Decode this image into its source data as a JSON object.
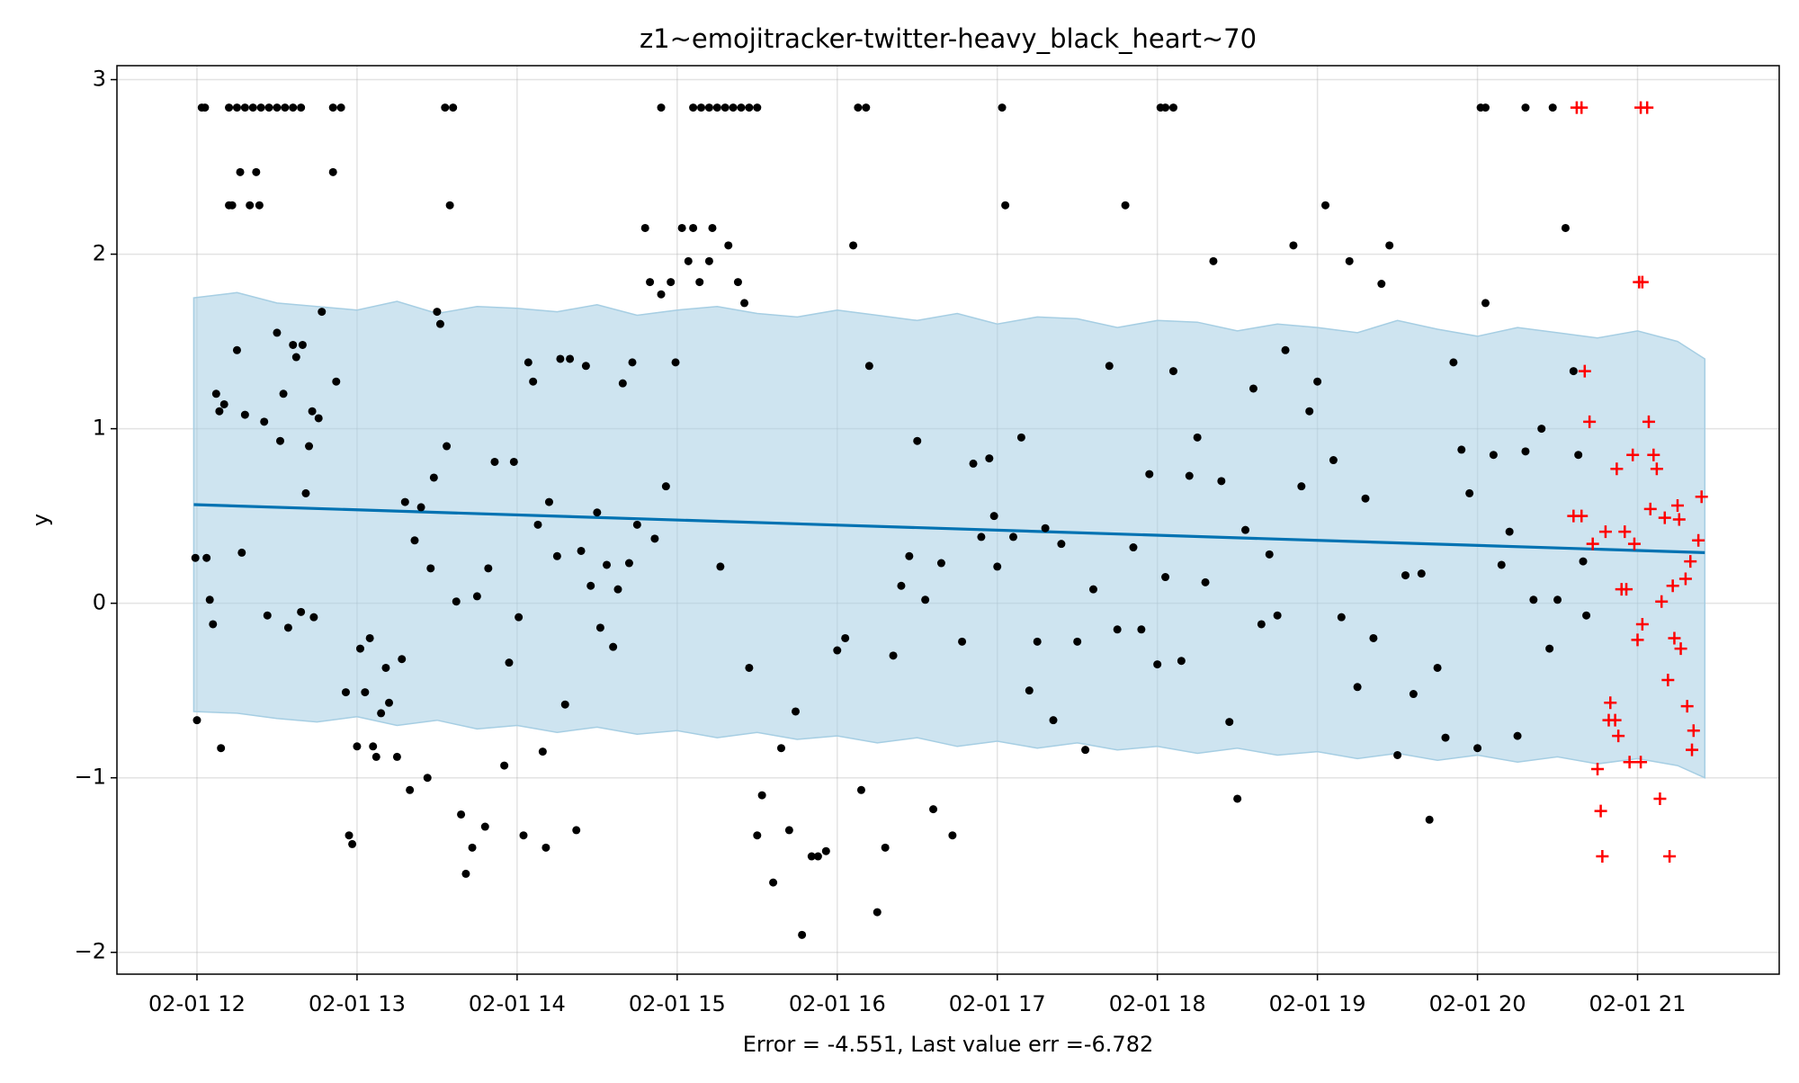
{
  "chart_data": {
    "type": "scatter",
    "title": "z1~emojitracker-twitter-heavy_black_heart~70",
    "xlabel": "Error = -4.551, Last value err =-6.782",
    "ylabel": "y",
    "xlim": [
      11.5,
      21.885
    ],
    "ylim": [
      -2.125,
      3.08
    ],
    "xticks": [
      {
        "value": 12,
        "label": "02-01 12"
      },
      {
        "value": 13,
        "label": "02-01 13"
      },
      {
        "value": 14,
        "label": "02-01 14"
      },
      {
        "value": 15,
        "label": "02-01 15"
      },
      {
        "value": 16,
        "label": "02-01 16"
      },
      {
        "value": 17,
        "label": "02-01 17"
      },
      {
        "value": 18,
        "label": "02-01 18"
      },
      {
        "value": 19,
        "label": "02-01 19"
      },
      {
        "value": 20,
        "label": "02-01 20"
      },
      {
        "value": 21,
        "label": "02-01 21"
      }
    ],
    "yticks": [
      {
        "value": -2,
        "label": "−2"
      },
      {
        "value": -1,
        "label": "−1"
      },
      0,
      1,
      2,
      3
    ],
    "grid": true,
    "band": {
      "color": "#a6cee3",
      "x": [
        11.98,
        12.25,
        12.5,
        12.75,
        13,
        13.25,
        13.5,
        13.75,
        14,
        14.25,
        14.5,
        14.75,
        15,
        15.25,
        15.5,
        15.75,
        16,
        16.25,
        16.5,
        16.75,
        17,
        17.25,
        17.5,
        17.75,
        18,
        18.25,
        18.5,
        18.75,
        19,
        19.25,
        19.5,
        19.75,
        20,
        20.25,
        20.5,
        20.75,
        21,
        21.25,
        21.42
      ],
      "upper": [
        1.75,
        1.78,
        1.72,
        1.7,
        1.68,
        1.73,
        1.66,
        1.7,
        1.69,
        1.67,
        1.71,
        1.65,
        1.68,
        1.7,
        1.66,
        1.64,
        1.68,
        1.65,
        1.62,
        1.66,
        1.6,
        1.64,
        1.63,
        1.58,
        1.62,
        1.61,
        1.56,
        1.6,
        1.58,
        1.55,
        1.62,
        1.57,
        1.53,
        1.58,
        1.55,
        1.52,
        1.56,
        1.5,
        1.4
      ],
      "lower": [
        -0.62,
        -0.63,
        -0.66,
        -0.68,
        -0.65,
        -0.7,
        -0.67,
        -0.72,
        -0.7,
        -0.74,
        -0.71,
        -0.75,
        -0.73,
        -0.77,
        -0.74,
        -0.78,
        -0.76,
        -0.8,
        -0.77,
        -0.82,
        -0.79,
        -0.83,
        -0.8,
        -0.84,
        -0.82,
        -0.86,
        -0.83,
        -0.87,
        -0.85,
        -0.89,
        -0.86,
        -0.9,
        -0.87,
        -0.91,
        -0.88,
        -0.92,
        -0.89,
        -0.93,
        -1.0
      ]
    },
    "trend": {
      "color": "#0072b2",
      "x": [
        11.98,
        21.42
      ],
      "values": [
        0.565,
        0.29
      ]
    },
    "series": [
      {
        "color": "#000000",
        "marker": "dot",
        "x": [
          12.03,
          12.05,
          12.2,
          12.25,
          12.3,
          12.35,
          12.4,
          12.45,
          12.5,
          12.55,
          12.6,
          12.65,
          12.85,
          12.9,
          13.55,
          13.6,
          14.9,
          15.1,
          15.15,
          15.2,
          15.25,
          15.3,
          15.35,
          15.4,
          15.45,
          15.5,
          16.13,
          16.18,
          17.03,
          18.02,
          18.05,
          18.1,
          20.02,
          20.05,
          20.3,
          20.47,
          11.99,
          12.0,
          12.06,
          12.08,
          12.1,
          12.12,
          12.14,
          12.15,
          12.17,
          12.2,
          12.22,
          12.25,
          12.27,
          12.28,
          12.3,
          12.33,
          12.37,
          12.39,
          12.42,
          12.44,
          12.5,
          12.52,
          12.54,
          12.57,
          12.6,
          12.62,
          12.65,
          12.66,
          12.68,
          12.7,
          12.72,
          12.73,
          12.76,
          12.78,
          12.85,
          12.87,
          12.93,
          12.95,
          12.97,
          13.0,
          13.02,
          13.05,
          13.08,
          13.1,
          13.12,
          13.15,
          13.18,
          13.2,
          13.25,
          13.28,
          13.3,
          13.33,
          13.36,
          13.4,
          13.44,
          13.46,
          13.48,
          13.5,
          13.52,
          13.56,
          13.58,
          13.62,
          13.65,
          13.68,
          13.72,
          13.75,
          13.8,
          13.82,
          13.86,
          13.92,
          13.95,
          13.98,
          14.01,
          14.04,
          14.07,
          14.1,
          14.13,
          14.16,
          14.18,
          14.2,
          14.25,
          14.27,
          14.3,
          14.33,
          14.37,
          14.4,
          14.43,
          14.46,
          14.5,
          14.52,
          14.56,
          14.6,
          14.63,
          14.66,
          14.7,
          14.72,
          14.75,
          14.8,
          14.83,
          14.86,
          14.9,
          14.93,
          14.96,
          14.99,
          15.03,
          15.07,
          15.1,
          15.14,
          15.2,
          15.22,
          15.27,
          15.32,
          15.38,
          15.42,
          15.45,
          15.5,
          15.53,
          15.6,
          15.65,
          15.7,
          15.74,
          15.78,
          15.84,
          15.88,
          15.93,
          16.0,
          16.05,
          16.1,
          16.15,
          16.2,
          16.25,
          16.3,
          16.35,
          16.4,
          16.45,
          16.5,
          16.55,
          16.6,
          16.65,
          16.72,
          16.78,
          16.85,
          16.9,
          16.95,
          16.98,
          17.0,
          17.05,
          17.1,
          17.15,
          17.2,
          17.25,
          17.3,
          17.35,
          17.4,
          17.5,
          17.55,
          17.6,
          17.7,
          17.75,
          17.8,
          17.85,
          17.9,
          17.95,
          18.0,
          18.05,
          18.1,
          18.15,
          18.2,
          18.25,
          18.3,
          18.35,
          18.4,
          18.45,
          18.5,
          18.55,
          18.6,
          18.65,
          18.7,
          18.75,
          18.8,
          18.85,
          18.9,
          18.95,
          19.0,
          19.05,
          19.1,
          19.15,
          19.2,
          19.25,
          19.3,
          19.35,
          19.4,
          19.45,
          19.5,
          19.55,
          19.6,
          19.65,
          19.7,
          19.75,
          19.8,
          19.85,
          19.9,
          19.95,
          20.0,
          20.05,
          20.1,
          20.15,
          20.2,
          20.25,
          20.3,
          20.35,
          20.4,
          20.45,
          20.5,
          20.55,
          20.6,
          20.63,
          20.66,
          20.68
        ],
        "values": [
          2.84,
          2.84,
          2.84,
          2.84,
          2.84,
          2.84,
          2.84,
          2.84,
          2.84,
          2.84,
          2.84,
          2.84,
          2.84,
          2.84,
          2.84,
          2.84,
          2.84,
          2.84,
          2.84,
          2.84,
          2.84,
          2.84,
          2.84,
          2.84,
          2.84,
          2.84,
          2.84,
          2.84,
          2.84,
          2.84,
          2.84,
          2.84,
          2.84,
          2.84,
          2.84,
          2.84,
          0.26,
          -0.67,
          0.26,
          0.02,
          -0.12,
          1.2,
          1.1,
          -0.83,
          1.14,
          2.28,
          2.28,
          1.45,
          2.47,
          0.29,
          1.08,
          2.28,
          2.47,
          2.28,
          1.04,
          -0.07,
          1.55,
          0.93,
          1.2,
          -0.14,
          1.48,
          1.41,
          -0.05,
          1.48,
          0.63,
          0.9,
          1.1,
          -0.08,
          1.06,
          1.67,
          2.47,
          1.27,
          -0.51,
          -1.33,
          -1.38,
          -0.82,
          -0.26,
          -0.51,
          -0.2,
          -0.82,
          -0.88,
          -0.63,
          -0.37,
          -0.57,
          -0.88,
          -0.32,
          0.58,
          -1.07,
          0.36,
          0.55,
          -1.0,
          0.2,
          0.72,
          1.67,
          1.6,
          0.9,
          2.28,
          0.01,
          -1.21,
          -1.55,
          -1.4,
          0.04,
          -1.28,
          0.2,
          0.81,
          -0.93,
          -0.34,
          0.81,
          -0.08,
          -1.33,
          1.38,
          1.27,
          0.45,
          -0.85,
          -1.4,
          0.58,
          0.27,
          1.4,
          -0.58,
          1.4,
          -1.3,
          0.3,
          1.36,
          0.1,
          0.52,
          -0.14,
          0.22,
          -0.25,
          0.08,
          1.26,
          0.23,
          1.38,
          0.45,
          2.15,
          1.84,
          0.37,
          1.77,
          0.67,
          1.84,
          1.38,
          2.15,
          1.96,
          2.15,
          1.84,
          1.96,
          2.15,
          0.21,
          2.05,
          1.84,
          1.72,
          -0.37,
          -1.33,
          -1.1,
          -1.6,
          -0.83,
          -1.3,
          -0.62,
          -1.9,
          -1.45,
          -1.45,
          -1.42,
          -0.27,
          -0.2,
          2.05,
          -1.07,
          1.36,
          -1.77,
          -1.4,
          -0.3,
          0.1,
          0.27,
          0.93,
          0.02,
          -1.18,
          0.23,
          -1.33,
          -0.22,
          0.8,
          0.38,
          0.83,
          0.5,
          0.21,
          2.28,
          0.38,
          0.95,
          -0.5,
          -0.22,
          0.43,
          -0.67,
          0.34,
          -0.22,
          -0.84,
          0.08,
          1.36,
          -0.15,
          2.28,
          0.32,
          -0.15,
          0.74,
          -0.35,
          0.15,
          1.33,
          -0.33,
          0.73,
          0.95,
          0.12,
          1.96,
          0.7,
          -0.68,
          -1.12,
          0.42,
          1.23,
          -0.12,
          0.28,
          -0.07,
          1.45,
          2.05,
          0.67,
          1.1,
          1.27,
          2.28,
          0.82,
          -0.08,
          1.96,
          -0.48,
          0.6,
          -0.2,
          1.83,
          2.05,
          -0.87,
          0.16,
          -0.52,
          0.17,
          -1.24,
          -0.37,
          -0.77,
          1.38,
          0.88,
          0.63,
          -0.83,
          1.72,
          0.85,
          0.22,
          0.41,
          -0.76,
          0.87,
          0.02,
          1.0,
          -0.26,
          0.02,
          2.15,
          1.33,
          0.85,
          0.24,
          -0.07
        ]
      },
      {
        "color": "#ff0000",
        "marker": "plus",
        "x": [
          20.62,
          20.65,
          20.67,
          20.7,
          20.72,
          20.75,
          20.77,
          20.78,
          20.6,
          20.65,
          20.8,
          20.83,
          20.82,
          20.87,
          20.86,
          20.88,
          20.9,
          20.92,
          20.93,
          20.95,
          20.97,
          20.98,
          21.0,
          21.02,
          21.03,
          21.01,
          21.03,
          21.02,
          21.06,
          21.07,
          21.08,
          21.1,
          21.12,
          21.14,
          21.15,
          21.17,
          21.19,
          21.2,
          21.22,
          21.23,
          21.25,
          21.26,
          21.27,
          21.3,
          21.31,
          21.33,
          21.35,
          21.34,
          21.38,
          21.4
        ],
        "values": [
          2.84,
          2.84,
          1.33,
          1.04,
          0.34,
          -0.95,
          -1.19,
          -1.45,
          0.5,
          0.5,
          0.41,
          -0.57,
          -0.67,
          0.77,
          -0.67,
          -0.76,
          0.08,
          0.41,
          0.08,
          -0.91,
          0.85,
          0.34,
          -0.21,
          -0.91,
          -0.12,
          1.84,
          1.84,
          2.84,
          2.84,
          1.04,
          0.54,
          0.85,
          0.77,
          -1.12,
          0.01,
          0.49,
          -0.44,
          -1.45,
          0.1,
          -0.2,
          0.56,
          0.48,
          -0.26,
          0.14,
          -0.59,
          0.24,
          -0.73,
          -0.84,
          0.36,
          0.61
        ]
      }
    ]
  }
}
